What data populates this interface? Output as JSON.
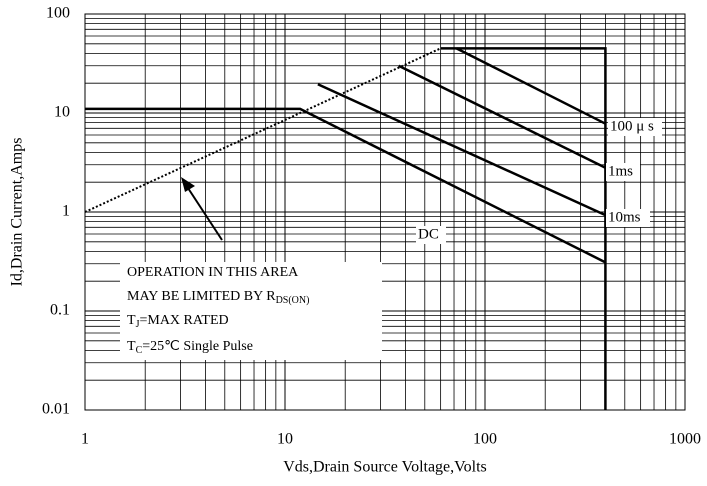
{
  "chart_data": {
    "type": "line",
    "xlabel": "Vds,Drain Source Voltage,Volts",
    "ylabel": "Id,Drain Current,Amps",
    "xscale": "log",
    "yscale": "log",
    "xlim": [
      1,
      1000
    ],
    "ylim": [
      0.01,
      100
    ],
    "xticks": [
      1,
      10,
      100,
      1000
    ],
    "yticks": [
      0.01,
      0.1,
      1,
      10,
      100
    ],
    "grid": true,
    "series": [
      {
        "x": [
          1,
          60
        ],
        "values": [
          1,
          45
        ],
        "color": "#000000",
        "style": "dotted"
      },
      {
        "x": [
          60,
          400,
          400
        ],
        "values": [
          45,
          45,
          0.01
        ],
        "color": "#000000",
        "style": "solid"
      },
      {
        "name": "100 μ s",
        "x": [
          72,
          400
        ],
        "values": [
          45,
          7.8
        ],
        "color": "#000000",
        "style": "solid"
      },
      {
        "name": "1ms",
        "x": [
          37,
          400
        ],
        "values": [
          30,
          2.8
        ],
        "color": "#000000",
        "style": "solid"
      },
      {
        "name": "10ms",
        "x": [
          14.6,
          400
        ],
        "values": [
          19.5,
          0.93
        ],
        "color": "#000000",
        "style": "solid"
      },
      {
        "name": "DC",
        "x": [
          1,
          11.9,
          400
        ],
        "values": [
          11,
          11,
          0.31
        ],
        "color": "#000000",
        "style": "solid"
      }
    ],
    "annotation": {
      "lines": [
        {
          "text": "OPERATION IN THIS AREA"
        },
        {
          "text": "MAY BE LIMITED BY R",
          "sub": "DS(ON)"
        },
        {
          "text": "T",
          "sub": "J",
          "rest": "=MAX RATED"
        },
        {
          "text": "T",
          "sub": "C",
          "rest": "=25℃  Single Pulse"
        }
      ]
    }
  }
}
